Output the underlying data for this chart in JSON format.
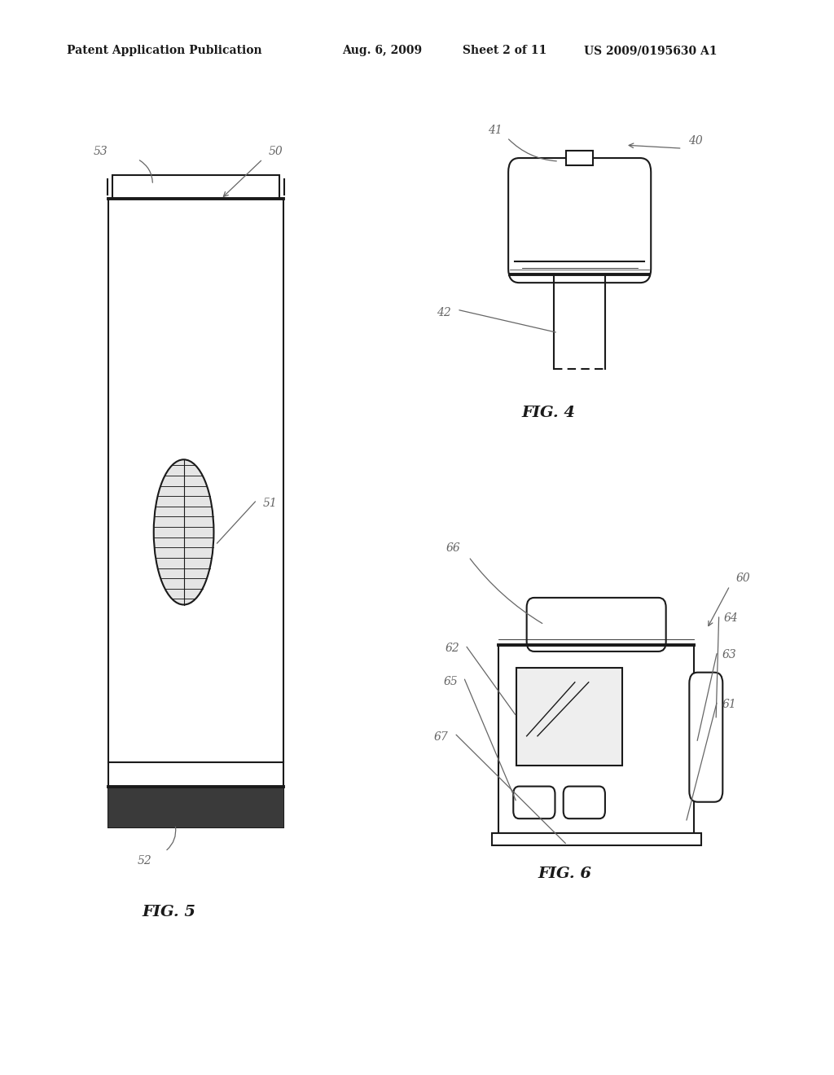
{
  "bg_color": "#ffffff",
  "header_text": "Patent Application Publication",
  "header_date": "Aug. 6, 2009",
  "header_sheet": "Sheet 2 of 11",
  "header_patent": "US 2009/0195630 A1",
  "fig5_label": "FIG. 5",
  "fig4_label": "FIG. 4",
  "fig6_label": "FIG. 6"
}
